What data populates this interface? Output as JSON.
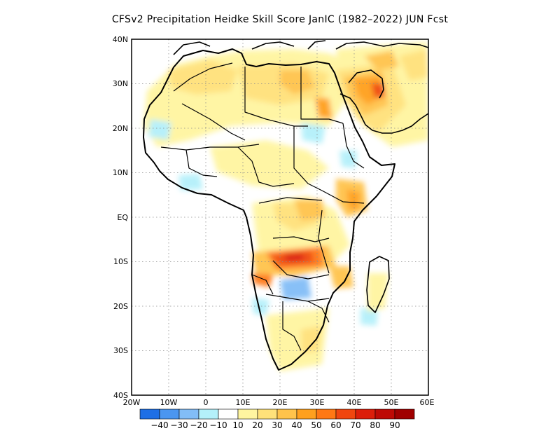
{
  "title": "CFSv2  Precipitation Heidke Skill Score JanIC (1982–2022) JUN Fcst",
  "axes": {
    "lat_labels": [
      "40N",
      "30N",
      "20N",
      "10N",
      "EQ",
      "10S",
      "20S",
      "30S",
      "40S"
    ],
    "lon_labels": [
      "20W",
      "10W",
      "0",
      "10E",
      "20E",
      "30E",
      "40E",
      "50E",
      "60E"
    ]
  },
  "colorbar": {
    "colors": [
      "#1e6fe6",
      "#4b96f0",
      "#82bdf7",
      "#b4f0fa",
      "#ffffff",
      "#fff5a0",
      "#ffe17a",
      "#ffc34b",
      "#ffa01e",
      "#ff7814",
      "#f0460f",
      "#dc1e0a",
      "#be0a05",
      "#a00000"
    ],
    "labels": [
      "−40",
      "−30",
      "−20",
      "−10",
      "10",
      "20",
      "30",
      "40",
      "50",
      "60",
      "70",
      "80",
      "90"
    ]
  },
  "colors": {
    "coastline": "#000000",
    "gridline": "#8c8c8c"
  }
}
